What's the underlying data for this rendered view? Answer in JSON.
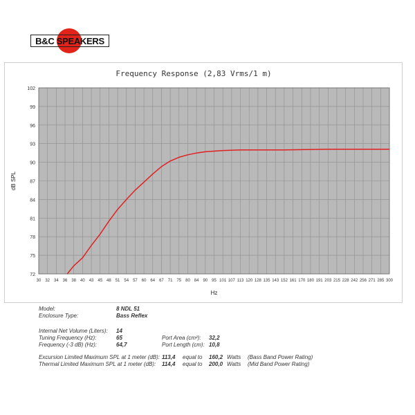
{
  "logo": {
    "text": "B&C SPEAKERS"
  },
  "chart_data": {
    "type": "line",
    "title": "Frequency Response (2,83 Vrms/1 m)",
    "xlabel": "Hz",
    "ylabel": "dB SPL",
    "ylim": [
      72,
      102
    ],
    "yticks": [
      72,
      75,
      78,
      81,
      84,
      87,
      90,
      93,
      96,
      99,
      102
    ],
    "xticks": [
      30,
      32,
      34,
      36,
      38,
      40,
      43,
      45,
      48,
      51,
      54,
      57,
      60,
      64,
      67,
      71,
      75,
      80,
      84,
      90,
      95,
      101,
      107,
      113,
      120,
      128,
      135,
      143,
      152,
      161,
      170,
      180,
      191,
      203,
      215,
      228,
      242,
      256,
      271,
      285,
      300
    ],
    "grid": true,
    "series": [
      {
        "color": "#e02020",
        "x": [
          36.5,
          38,
          40,
          43,
          45,
          48,
          51,
          54,
          57,
          60,
          64,
          67,
          71,
          75,
          80,
          84,
          90,
          95,
          101,
          113,
          128,
          152,
          203,
          256,
          300
        ],
        "y": [
          72,
          73.3,
          74.6,
          76.6,
          78.4,
          80.5,
          82.4,
          84.0,
          85.5,
          86.8,
          88.1,
          89.3,
          90.2,
          90.8,
          91.2,
          91.5,
          91.7,
          91.8,
          91.9,
          92.0,
          92.0,
          92.0,
          92.1,
          92.1,
          92.1
        ]
      }
    ]
  },
  "specs": {
    "model_label": "Model:",
    "model_value": "8 NDL 51",
    "enclosure_label": "Enclosure Type:",
    "enclosure_value": "Bass Reflex",
    "volume_label": "Internal Net Volume (Liters):",
    "volume_value": "14",
    "tuning_label": "Tuning Frequency (Hz):",
    "tuning_value": "65",
    "f3_label": "Frequency (-3 dB) (Hz):",
    "f3_value": "64,7",
    "port_area_label": "Port Area (cm²):",
    "port_area_value": "32,2",
    "port_length_label": "Port Length (cm):",
    "port_length_value": "10,8",
    "exc_label": "Excursion Limited Maximum SPL at 1 meter (dB):",
    "exc_value": "113,4",
    "exc_equal": "equal to",
    "exc_watts": "160,2",
    "exc_unit": "Watts",
    "exc_note": "(Bass Band Power Rating)",
    "therm_label": "Thermal Limited Maximum SPL at 1 meter (dB):",
    "therm_value": "114,4",
    "therm_equal": "equal to",
    "therm_watts": "200,0",
    "therm_unit": "Watts",
    "therm_note": "(Mid Band Power Rating)"
  }
}
